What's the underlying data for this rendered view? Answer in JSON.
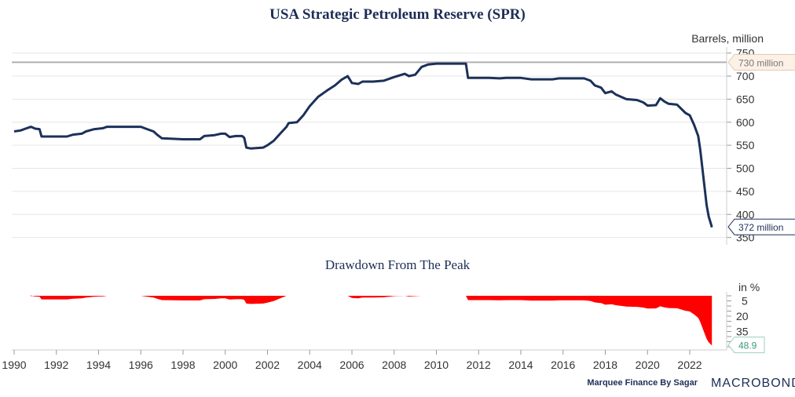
{
  "chart_data": [
    {
      "type": "line",
      "title": "USA Strategic Petroleum Reserve (SPR)",
      "ylabel": "Barrels, million",
      "ylim": [
        340,
        760
      ],
      "yticks": [
        350,
        400,
        450,
        500,
        550,
        600,
        650,
        700,
        750
      ],
      "reference_line": {
        "value": 730,
        "label": "730 million"
      },
      "last_label": "372 million",
      "color": "#1c3159",
      "ref_color": "#b0b0b0",
      "x": [
        1990.0,
        1990.3,
        1990.6,
        1990.8,
        1991.0,
        1991.2,
        1991.3,
        1992.5,
        1992.8,
        1993.2,
        1993.4,
        1993.8,
        1994.2,
        1994.4,
        1996.0,
        1996.3,
        1996.6,
        1996.8,
        1997.0,
        1998.0,
        1998.8,
        1999.0,
        1999.5,
        1999.8,
        2000.0,
        2000.2,
        2000.5,
        2000.8,
        2000.9,
        2001.0,
        2001.2,
        2001.8,
        2002.0,
        2002.3,
        2002.6,
        2002.9,
        2003.0,
        2003.4,
        2003.7,
        2004.0,
        2004.4,
        2004.8,
        2005.2,
        2005.5,
        2005.8,
        2006.0,
        2006.3,
        2006.5,
        2007.0,
        2007.5,
        2008.0,
        2008.5,
        2008.7,
        2009.0,
        2009.3,
        2009.6,
        2010.0,
        2011.0,
        2011.4,
        2011.5,
        2012.5,
        2013.0,
        2013.3,
        2014.0,
        2014.5,
        2015.5,
        2015.8,
        2017.0,
        2017.3,
        2017.5,
        2017.8,
        2018.0,
        2018.3,
        2018.5,
        2019.0,
        2019.5,
        2019.8,
        2020.0,
        2020.4,
        2020.6,
        2020.8,
        2021.0,
        2021.4,
        2021.8,
        2022.0,
        2022.2,
        2022.4,
        2022.5,
        2022.6,
        2022.7,
        2022.8,
        2022.9,
        2023.0,
        2023.05
      ],
      "values": [
        580,
        582,
        587,
        590,
        586,
        585,
        569,
        569,
        573,
        575,
        580,
        585,
        587,
        590,
        590,
        585,
        580,
        572,
        565,
        563,
        563,
        570,
        572,
        575,
        575,
        568,
        570,
        570,
        566,
        545,
        543,
        545,
        550,
        560,
        575,
        590,
        598,
        600,
        615,
        635,
        655,
        668,
        680,
        692,
        700,
        685,
        683,
        688,
        688,
        690,
        698,
        705,
        700,
        703,
        720,
        725,
        727,
        727,
        727,
        696,
        696,
        695,
        696,
        696,
        693,
        693,
        695,
        695,
        690,
        680,
        675,
        663,
        667,
        660,
        650,
        648,
        643,
        636,
        637,
        652,
        645,
        640,
        638,
        620,
        615,
        595,
        570,
        540,
        500,
        460,
        420,
        395,
        380,
        372
      ]
    },
    {
      "type": "area",
      "title": "Drawdown From The Peak",
      "ylabel": "in %",
      "ylim": [
        0,
        52
      ],
      "yticks": [
        5,
        20,
        35
      ],
      "inverted": true,
      "derived_from": "running peak of series 1",
      "last_label": "48.9",
      "color": "#ff0000",
      "label_color": "#3a9a7a"
    }
  ],
  "xaxis": {
    "min": 1990,
    "max": 2023.5,
    "ticks": [
      "1990",
      "1992",
      "1994",
      "1996",
      "1998",
      "2000",
      "2002",
      "2004",
      "2006",
      "2008",
      "2010",
      "2012",
      "2014",
      "2016",
      "2018",
      "2020",
      "2022"
    ]
  },
  "footer": {
    "credit": "Marquee Finance By Sagar",
    "logo": "MACROBOND"
  }
}
